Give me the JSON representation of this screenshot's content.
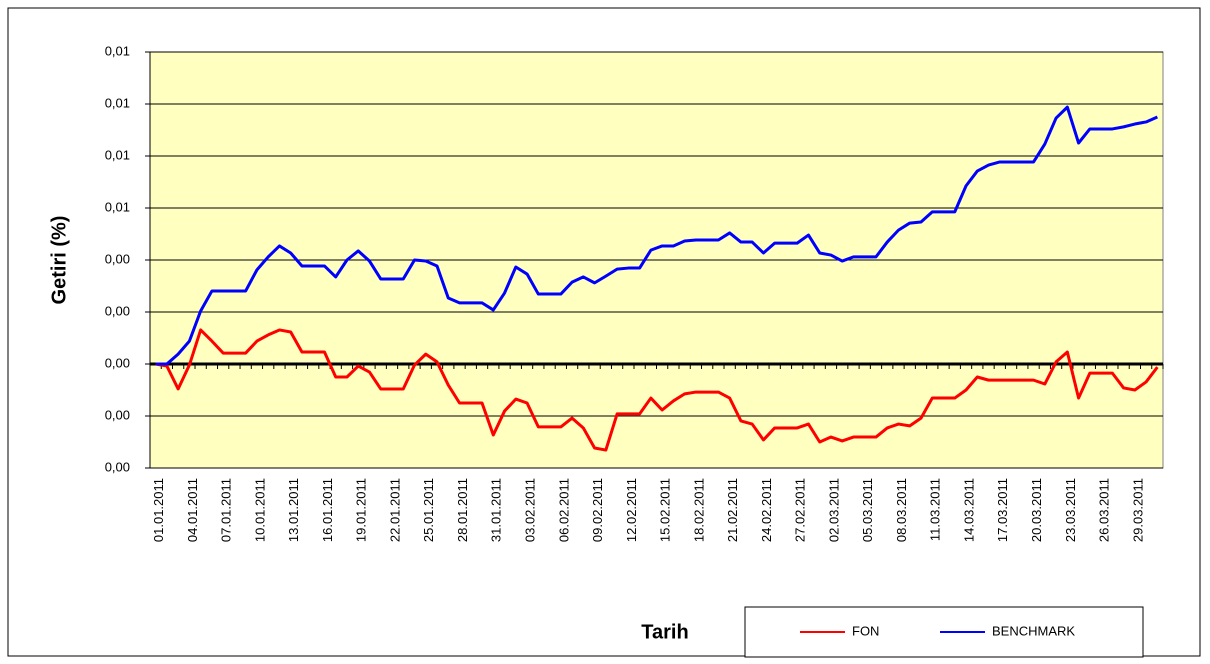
{
  "chart_data": {
    "type": "line",
    "y_label": "Getiri (%)",
    "x_label": "Tarih",
    "categories": [
      "01.01.2011",
      null,
      null,
      "04.01.2011",
      null,
      null,
      "07.01.2011",
      null,
      null,
      "10.01.2011",
      null,
      null,
      "13.01.2011",
      null,
      null,
      "16.01.2011",
      null,
      null,
      "19.01.2011",
      null,
      null,
      "22.01.2011",
      null,
      null,
      "25.01.2011",
      null,
      null,
      "28.01.2011",
      null,
      null,
      "31.01.2011",
      null,
      null,
      "03.02.2011",
      null,
      null,
      "06.02.2011",
      null,
      null,
      "09.02.2011",
      null,
      null,
      "12.02.2011",
      null,
      null,
      "15.02.2011",
      null,
      null,
      "18.02.2011",
      null,
      null,
      "21.02.2011",
      null,
      null,
      "24.02.2011",
      null,
      null,
      "27.02.2011",
      null,
      null,
      "02.03.2011",
      null,
      null,
      "05.03.2011",
      null,
      null,
      "08.03.2011",
      null,
      null,
      "11.03.2011",
      null,
      null,
      "14.03.2011",
      null,
      null,
      "17.03.2011",
      null,
      null,
      "20.03.2011",
      null,
      null,
      "23.03.2011",
      null,
      null,
      "26.03.2011",
      null,
      null,
      "29.03.2011",
      null,
      null
    ],
    "series": [
      {
        "name": "FON",
        "color": "#ff0000",
        "values": [
          0,
          -8e-05,
          -0.00096,
          -4e-05,
          0.00131,
          0.00088,
          0.00042,
          0.00042,
          0.00042,
          0.00088,
          0.00112,
          0.00131,
          0.00123,
          0.00046,
          0.00046,
          0.00046,
          -0.0005,
          -0.0005,
          -8e-05,
          -0.00031,
          -0.00096,
          -0.00096,
          -0.00096,
          -4e-05,
          0.00038,
          8e-05,
          -0.00081,
          -0.0015,
          -0.0015,
          -0.0015,
          -0.00273,
          -0.00181,
          -0.00135,
          -0.0015,
          -0.00242,
          -0.00242,
          -0.00242,
          -0.00208,
          -0.00246,
          -0.00323,
          -0.00331,
          -0.00192,
          -0.00192,
          -0.00192,
          -0.00131,
          -0.00177,
          -0.00142,
          -0.00115,
          -0.00108,
          -0.00108,
          -0.00108,
          -0.00131,
          -0.00219,
          -0.00231,
          -0.00292,
          -0.00246,
          -0.00246,
          -0.00246,
          -0.00231,
          -0.003,
          -0.00281,
          -0.00296,
          -0.00281,
          -0.00281,
          -0.00281,
          -0.00246,
          -0.00231,
          -0.00238,
          -0.00208,
          -0.00131,
          -0.00131,
          -0.00131,
          -0.001,
          -0.0005,
          -0.00062,
          -0.00062,
          -0.00062,
          -0.00062,
          -0.00062,
          -0.00077,
          8e-05,
          0.00046,
          -0.00131,
          -0.00035,
          -0.00035,
          -0.00035,
          -0.00092,
          -0.001,
          -0.00069,
          -0.00012
        ]
      },
      {
        "name": "BENCHMARK",
        "color": "#0000ff",
        "values": [
          0,
          0,
          0.00038,
          0.00088,
          0.00204,
          0.00281,
          0.00281,
          0.00281,
          0.00281,
          0.00362,
          0.00412,
          0.00454,
          0.00427,
          0.00377,
          0.00377,
          0.00377,
          0.00335,
          0.004,
          0.00435,
          0.00396,
          0.00327,
          0.00327,
          0.00327,
          0.004,
          0.00396,
          0.00377,
          0.00254,
          0.00235,
          0.00235,
          0.00235,
          0.00208,
          0.00273,
          0.00373,
          0.00346,
          0.00269,
          0.00269,
          0.00269,
          0.00315,
          0.00335,
          0.00312,
          0.00338,
          0.00365,
          0.00369,
          0.00369,
          0.00438,
          0.00454,
          0.00454,
          0.00473,
          0.00477,
          0.00477,
          0.00477,
          0.00504,
          0.00469,
          0.00469,
          0.00427,
          0.00465,
          0.00465,
          0.00465,
          0.00496,
          0.00427,
          0.00419,
          0.00396,
          0.00412,
          0.00412,
          0.00412,
          0.00469,
          0.00515,
          0.00542,
          0.00546,
          0.00585,
          0.00585,
          0.00585,
          0.00685,
          0.00742,
          0.00765,
          0.00777,
          0.00777,
          0.00777,
          0.00777,
          0.00846,
          0.00946,
          0.00988,
          0.0085,
          0.00904,
          0.00904,
          0.00904,
          0.00912,
          0.00923,
          0.00931,
          0.0095
        ]
      }
    ],
    "ylim": [
      -0.004,
      0.012
    ],
    "yticks": [
      {
        "value": -0.004,
        "label": "0,00"
      },
      {
        "value": -0.002,
        "label": "0,00"
      },
      {
        "value": 0,
        "label": "0,00"
      },
      {
        "value": 0.002,
        "label": "0,00"
      },
      {
        "value": 0.004,
        "label": "0,00"
      },
      {
        "value": 0.006,
        "label": "0,01"
      },
      {
        "value": 0.008,
        "label": "0,01"
      },
      {
        "value": 0.01,
        "label": "0,01"
      },
      {
        "value": 0.012,
        "label": "0,01"
      }
    ],
    "grid": true,
    "plot_background": "#ffffc0",
    "legend": "bottom-right"
  }
}
